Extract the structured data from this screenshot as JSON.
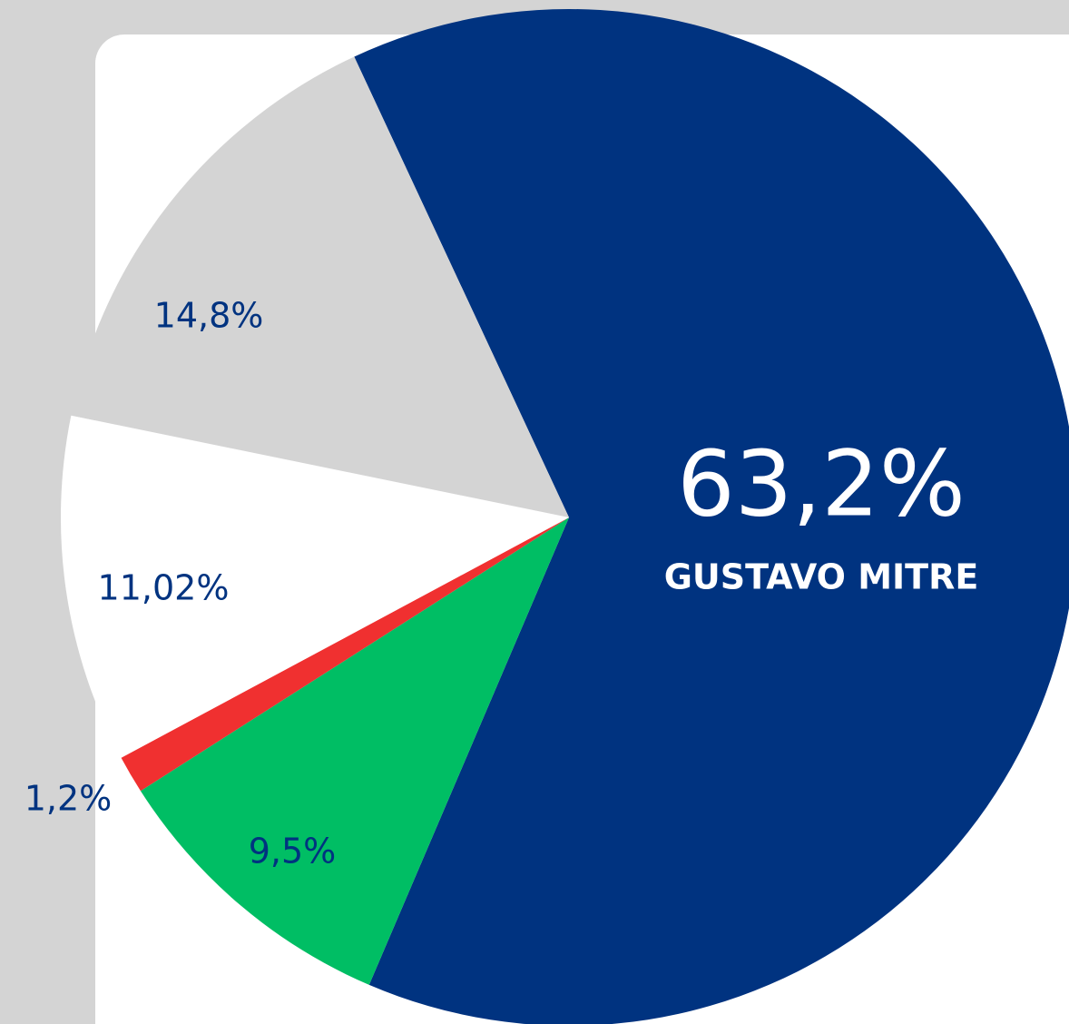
{
  "chart_data": {
    "type": "pie",
    "categories": [
      "GUSTAVO MITRE",
      null,
      null,
      null,
      null
    ],
    "values": [
      63.2,
      9.5,
      1.2,
      11.02,
      14.8
    ],
    "value_labels": [
      "63,2%",
      "9,5%",
      "1,2%",
      "11,02%",
      "14,8%"
    ],
    "colors": [
      "#003380",
      "#00be64",
      "#f03030",
      "#ffffff",
      "#d4d4d4"
    ]
  }
}
